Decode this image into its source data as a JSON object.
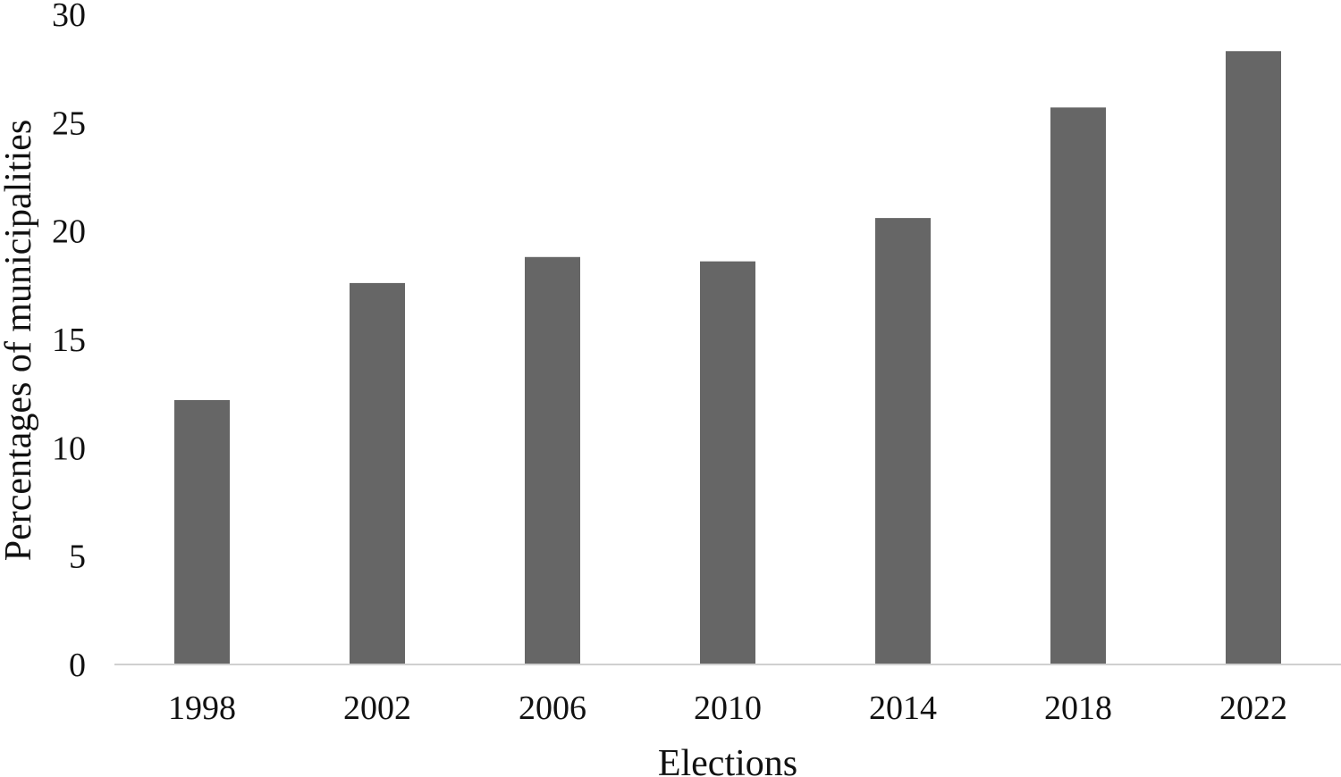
{
  "chart_data": {
    "type": "bar",
    "title": "",
    "xlabel": "Elections",
    "ylabel": "Percentages of municipalities",
    "categories": [
      "1998",
      "2002",
      "2006",
      "2010",
      "2014",
      "2018",
      "2022"
    ],
    "values": [
      12.2,
      17.6,
      18.8,
      18.6,
      20.6,
      25.7,
      28.3
    ],
    "ylim": [
      0,
      30
    ],
    "yticks": [
      "0",
      "5",
      "10",
      "15",
      "20",
      "25",
      "30"
    ],
    "grid": false,
    "legend": "none",
    "bar_color": "#666666",
    "axis_color": "#d0d0d0"
  }
}
